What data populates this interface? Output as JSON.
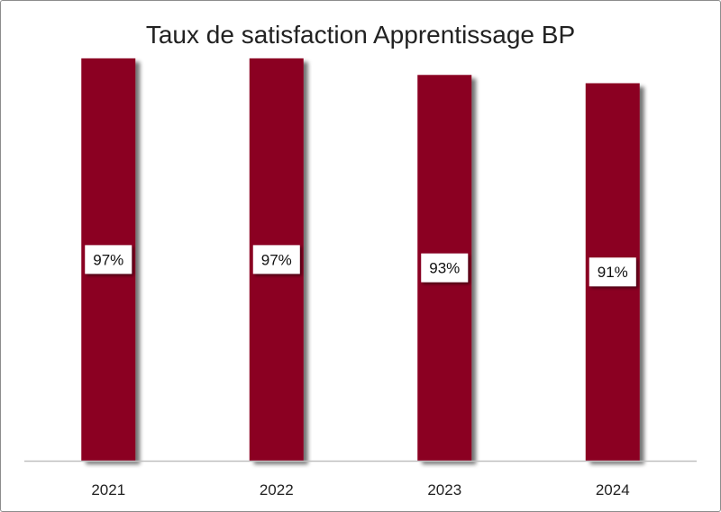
{
  "chart_data": {
    "type": "bar",
    "title": "Taux de satisfaction Apprentissage BP",
    "categories": [
      "2021",
      "2022",
      "2023",
      "2024"
    ],
    "values": [
      97,
      97,
      93,
      91
    ],
    "data_labels": [
      "97%",
      "97%",
      "93%",
      "91%"
    ],
    "ylim": [
      0,
      100
    ],
    "xlabel": "",
    "ylabel": "",
    "grid": false,
    "legend": "none",
    "colors": {
      "bar": "#8b0020",
      "axis": "#c0c0c0",
      "label_bg": "#ffffff"
    }
  }
}
